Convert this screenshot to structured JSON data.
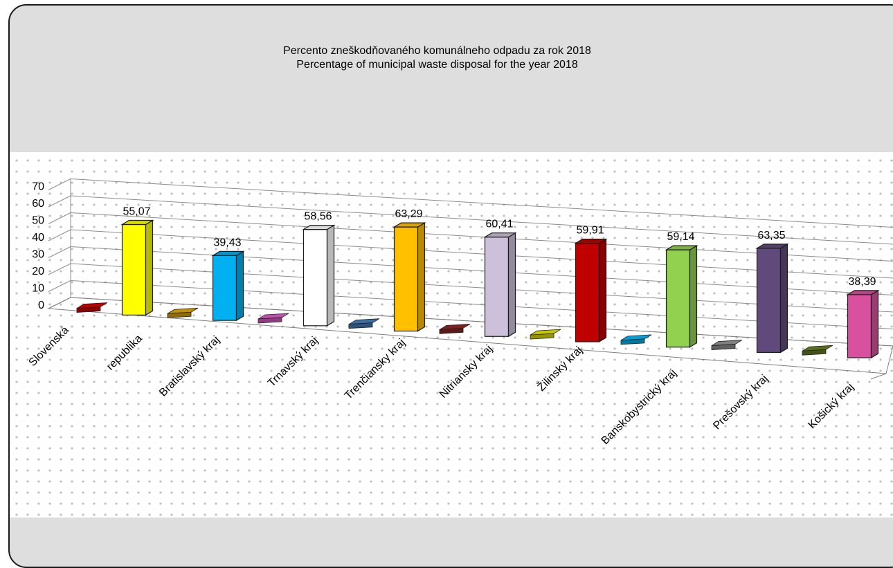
{
  "slide": {
    "title_sk": "Percento zneškodňovaného komunálneho odpadu za rok 2018",
    "title_en": "Percentage of municipal waste disposal for the year 2018"
  },
  "chart_data": {
    "type": "bar",
    "title": "Percento zneškodňovaného komunálneho odpadu za rok 2018 / Percentage of municipal waste disposal for the year 2018",
    "categories": [
      "Slovenská republika",
      "Bratislavský kraj",
      "Trnavský kraj",
      "Trenčiansky kraj",
      "Nitriansky kraj",
      "Žilinský kraj",
      "Banskobystrický kraj",
      "Prešovský kraj",
      "Košický kraj"
    ],
    "category_lines": [
      [
        "Slovenská",
        "republika"
      ],
      [
        "Bratislavský kraj"
      ],
      [
        "Trnavský kraj"
      ],
      [
        "Trenčiansky kraj"
      ],
      [
        "Nitriansky kraj"
      ],
      [
        "Žilinský kraj"
      ],
      [
        "Banskobystrický kraj"
      ],
      [
        "Prešovský kraj"
      ],
      [
        "Košický kraj"
      ]
    ],
    "values": [
      55.07,
      39.43,
      58.56,
      63.29,
      60.41,
      59.91,
      59.14,
      63.35,
      38.39
    ],
    "value_labels": [
      "55,07",
      "39,43",
      "58,56",
      "63,29",
      "60,41",
      "59,91",
      "59,14",
      "63,35",
      "38,39"
    ],
    "bar_colors": [
      "#ffff00",
      "#00b0f0",
      "#ffffff",
      "#ffc000",
      "#ccc0da",
      "#c00000",
      "#92d050",
      "#604a7b",
      "#d9509e"
    ],
    "empty_marker_colors": [
      "#c00000",
      "#c09000",
      "#c050b0",
      "#3a6ea5",
      "#7b1f1f",
      "#c8c800",
      "#00a0d8",
      "#808080",
      "#5a6e1e"
    ],
    "y_ticks": [
      "0",
      "10",
      "20",
      "30",
      "40",
      "50",
      "60",
      "70"
    ],
    "ylim": [
      0,
      70
    ],
    "xlabel": "",
    "ylabel": "",
    "grid": true,
    "perspective": "3d-tilted",
    "legend": "none"
  }
}
